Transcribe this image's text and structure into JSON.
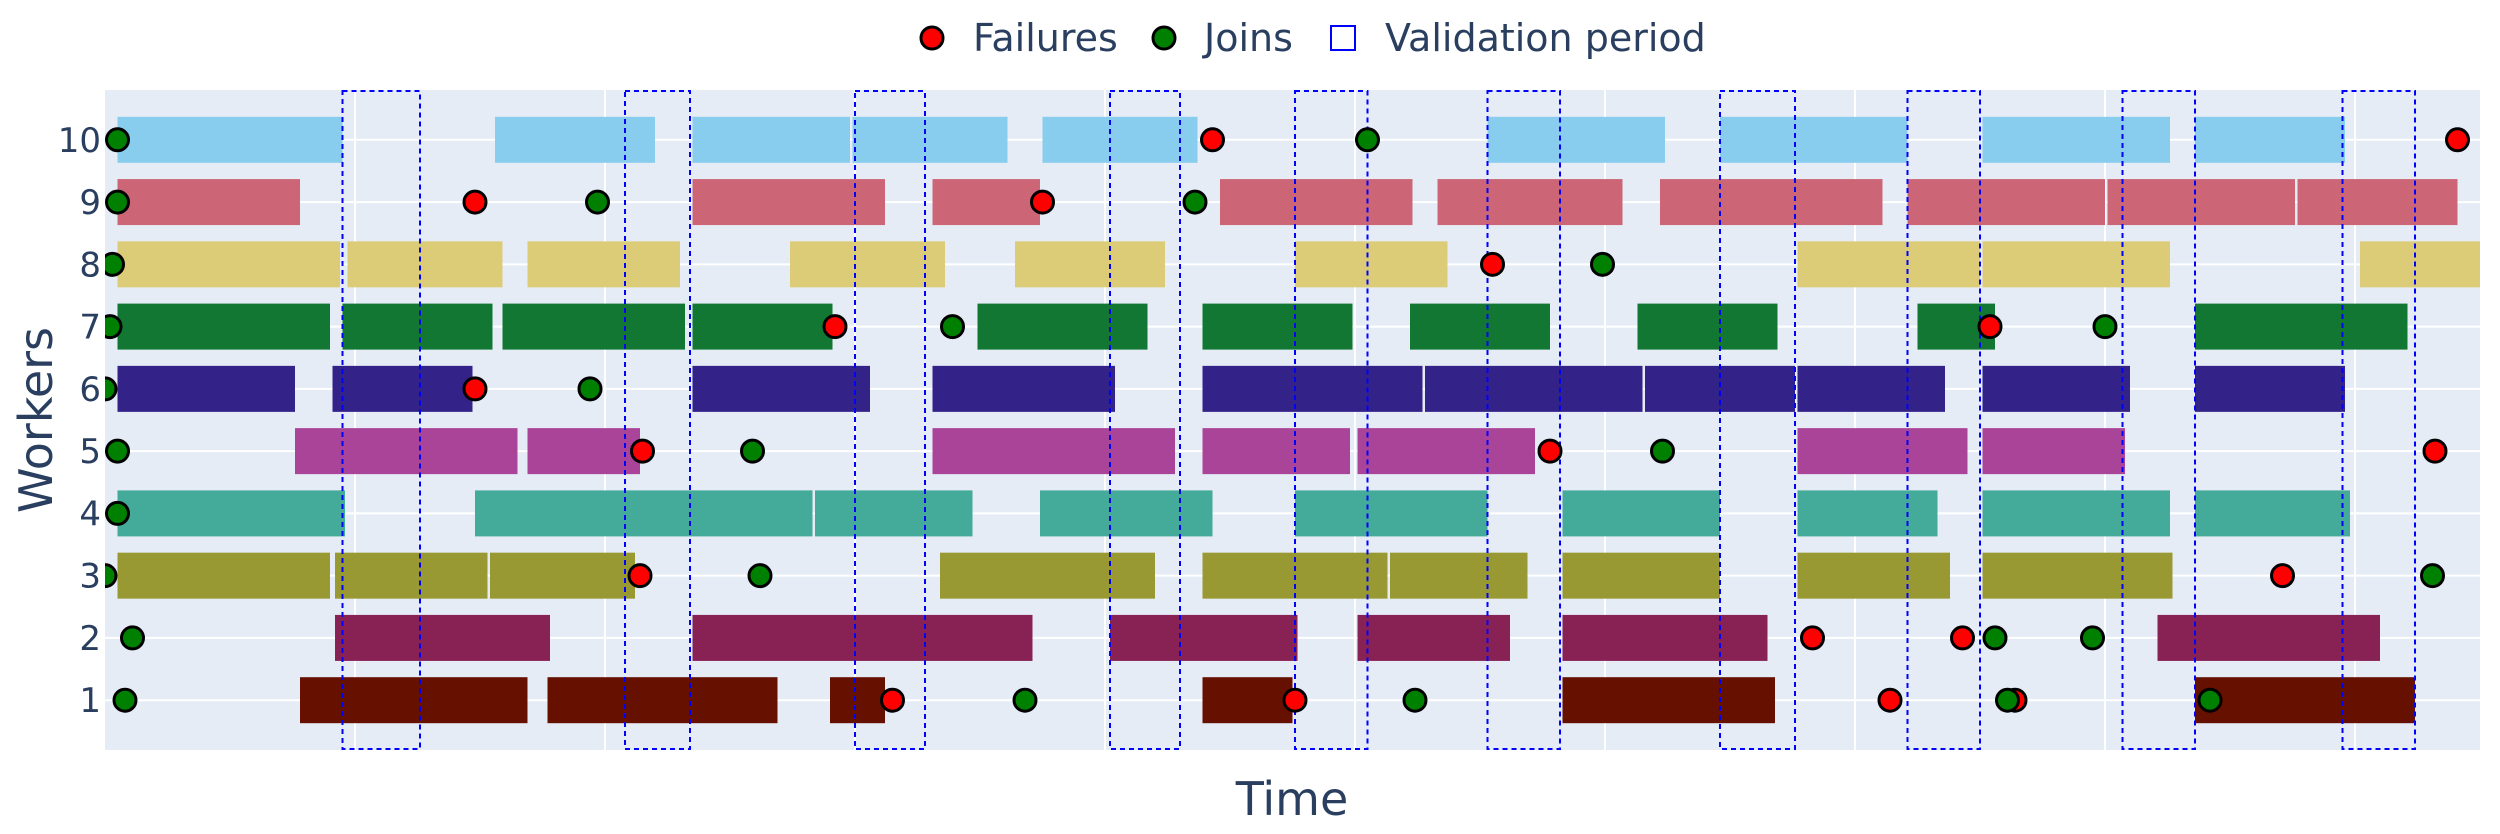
{
  "chart_data": {
    "type": "timeline",
    "xlabel": "Time",
    "ylabel": "Workers",
    "xlim": [
      0,
      95
    ],
    "ylim": [
      0.2,
      10.8
    ],
    "y_ticks": [
      "1",
      "2",
      "3",
      "4",
      "5",
      "6",
      "7",
      "8",
      "9",
      "10"
    ],
    "grid": true,
    "legend_position": "top-center",
    "legend": {
      "failures": "Failures",
      "joins": "Joins",
      "validation": "Validation period"
    },
    "colors": {
      "plot_bg": "#e5ecf6",
      "grid": "#ffffff",
      "failure": "#ff0000",
      "join": "#008000",
      "validation": "#0000ff",
      "text": "#2a3f5f",
      "workers": {
        "1": "#661100",
        "2": "#882255",
        "3": "#999933",
        "4": "#44aa99",
        "5": "#aa4499",
        "6": "#332288",
        "7": "#117733",
        "8": "#ddcc77",
        "9": "#cc6677",
        "10": "#88ccee"
      }
    },
    "validation_periods": [
      [
        9.5,
        12.6
      ],
      [
        20.8,
        23.4
      ],
      [
        30,
        32.8
      ],
      [
        40.2,
        43
      ],
      [
        47.6,
        50.5
      ],
      [
        55.3,
        58.2
      ],
      [
        64.6,
        67.6
      ],
      [
        72.1,
        75
      ],
      [
        80.7,
        83.6
      ],
      [
        89.5,
        92.4
      ]
    ],
    "segments": {
      "1": [
        [
          7.8,
          16.9
        ],
        [
          17.7,
          26.9
        ],
        [
          29,
          31.2
        ],
        [
          43.9,
          47.5
        ],
        [
          58.3,
          66.8
        ],
        [
          83.6,
          92.4
        ]
      ],
      "2": [
        [
          9.2,
          17.8
        ],
        [
          23.5,
          37.1
        ],
        [
          40.2,
          47.7
        ],
        [
          50.1,
          56.2
        ],
        [
          58.3,
          66.5
        ],
        [
          82.1,
          91
        ]
      ],
      "3": [
        [
          0.5,
          9
        ],
        [
          9.2,
          15.3
        ],
        [
          15.4,
          21.2
        ],
        [
          33.4,
          42
        ],
        [
          43.9,
          51.3
        ],
        [
          51.4,
          56.9
        ],
        [
          58.3,
          64.6
        ],
        [
          67.7,
          73.8
        ],
        [
          75.1,
          82.7
        ]
      ],
      "4": [
        [
          0.5,
          9.6
        ],
        [
          14.8,
          28.3
        ],
        [
          28.4,
          34.7
        ],
        [
          37.4,
          44.3
        ],
        [
          47.6,
          55.3
        ],
        [
          58.3,
          64.6
        ],
        [
          67.7,
          73.3
        ],
        [
          75.1,
          82.6
        ],
        [
          83.6,
          89.8
        ]
      ],
      "5": [
        [
          7.6,
          16.5
        ],
        [
          16.9,
          21.4
        ],
        [
          33.1,
          42.8
        ],
        [
          43.9,
          49.8
        ],
        [
          50.1,
          57.2
        ],
        [
          67.7,
          74.5
        ],
        [
          75.1,
          80.8
        ]
      ],
      "6": [
        [
          0.5,
          7.6
        ],
        [
          9.1,
          14.7
        ],
        [
          23.5,
          30.6
        ],
        [
          33.1,
          40.4
        ],
        [
          43.9,
          52.7
        ],
        [
          52.8,
          61.5
        ],
        [
          61.6,
          67.6
        ],
        [
          67.7,
          73.6
        ],
        [
          75.1,
          81
        ],
        [
          83.6,
          89.6
        ]
      ],
      "7": [
        [
          0.5,
          9
        ],
        [
          9.5,
          15.5
        ],
        [
          15.9,
          23.2
        ],
        [
          23.5,
          29.1
        ],
        [
          34.9,
          41.7
        ],
        [
          43.9,
          49.9
        ],
        [
          52.2,
          57.8
        ],
        [
          61.3,
          66.9
        ],
        [
          72.5,
          75.6
        ],
        [
          83.6,
          92.1
        ]
      ],
      "8": [
        [
          0.5,
          9.4
        ],
        [
          9.7,
          15.9
        ],
        [
          16.9,
          23
        ],
        [
          27.4,
          33.6
        ],
        [
          36.4,
          42.4
        ],
        [
          47.6,
          53.7
        ],
        [
          67.7,
          75
        ],
        [
          75.1,
          82.6
        ],
        [
          90.2,
          96.2
        ]
      ],
      "9": [
        [
          0.5,
          7.8
        ],
        [
          23.5,
          31.2
        ],
        [
          33.1,
          37.4
        ],
        [
          44.6,
          52.3
        ],
        [
          53.3,
          60.7
        ],
        [
          62.2,
          71.1
        ],
        [
          72.1,
          80
        ],
        [
          80.1,
          87.6
        ],
        [
          87.7,
          94.1
        ]
      ],
      "10": [
        [
          0.5,
          9.5
        ],
        [
          15.6,
          22
        ],
        [
          23.5,
          29.8
        ],
        [
          29.9,
          36.1
        ],
        [
          37.5,
          43.7
        ],
        [
          55.3,
          62.4
        ],
        [
          64.6,
          72.1
        ],
        [
          75.1,
          82.6
        ],
        [
          83.6,
          89.6
        ]
      ]
    },
    "failures": [
      [
        31.5,
        1
      ],
      [
        47.6,
        1
      ],
      [
        71.4,
        1
      ],
      [
        76.4,
        1
      ],
      [
        68.3,
        2
      ],
      [
        74.3,
        2
      ],
      [
        21.4,
        3
      ],
      [
        87.1,
        3
      ],
      [
        21.5,
        5
      ],
      [
        57.8,
        5
      ],
      [
        93.2,
        5
      ],
      [
        14.8,
        6
      ],
      [
        29.2,
        7
      ],
      [
        75.4,
        7
      ],
      [
        55.5,
        8
      ],
      [
        14.8,
        9
      ],
      [
        37.5,
        9
      ],
      [
        44.3,
        10
      ],
      [
        94.1,
        10
      ]
    ],
    "joins": [
      [
        0.8,
        1
      ],
      [
        36.8,
        1
      ],
      [
        52.4,
        1
      ],
      [
        76.1,
        1
      ],
      [
        84.2,
        1
      ],
      [
        1.1,
        2
      ],
      [
        75.6,
        2
      ],
      [
        79.5,
        2
      ],
      [
        0,
        3
      ],
      [
        26.2,
        3
      ],
      [
        93.1,
        3
      ],
      [
        0.5,
        4
      ],
      [
        0.5,
        5
      ],
      [
        25.9,
        5
      ],
      [
        62.3,
        5
      ],
      [
        0,
        6
      ],
      [
        19.4,
        6
      ],
      [
        0.2,
        7
      ],
      [
        33.9,
        7
      ],
      [
        80,
        7
      ],
      [
        0.3,
        8
      ],
      [
        59.9,
        8
      ],
      [
        0.5,
        9
      ],
      [
        19.7,
        9
      ],
      [
        43.6,
        9
      ],
      [
        0.5,
        10
      ],
      [
        50.5,
        10
      ]
    ]
  }
}
